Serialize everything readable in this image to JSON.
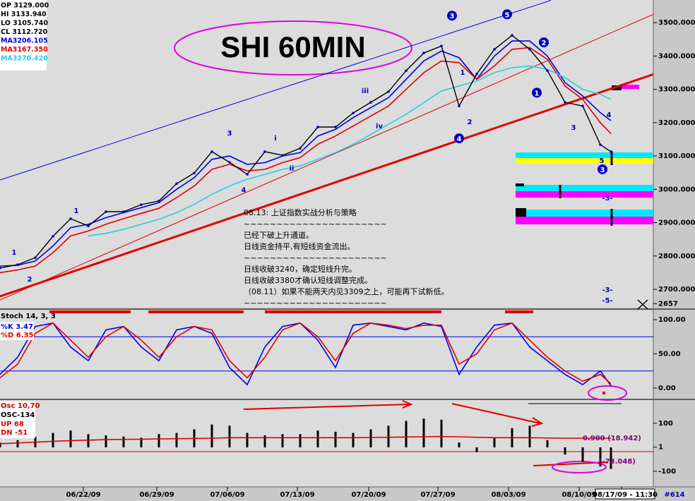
{
  "chart_data": [
    {
      "type": "line",
      "title": "SHI 60MIN",
      "info_text": [
        "OP 3129.000",
        "HI 3133.940",
        "LO 3105.740",
        "CL 3112.720"
      ],
      "x": [
        0,
        5,
        10,
        15,
        20,
        25,
        30,
        35,
        40,
        45,
        50,
        55,
        60,
        65,
        70,
        75,
        80,
        85,
        90,
        95,
        100,
        105,
        110,
        115,
        120,
        125,
        130,
        135,
        140,
        145,
        150,
        155,
        160,
        165,
        170,
        173
      ],
      "values": [
        2764,
        2774,
        2795,
        2859,
        2912,
        2890,
        2933,
        2933,
        2954,
        2965,
        3017,
        3049,
        3113,
        3081,
        3045,
        3113,
        3102,
        3123,
        3187,
        3187,
        3229,
        3261,
        3293,
        3356,
        3409,
        3430,
        3250,
        3346,
        3420,
        3462,
        3420,
        3356,
        3261,
        3250,
        3134,
        3113
      ],
      "color": "#000000",
      "series": [
        {
          "name": "MA3206.105",
          "color": "#0000e0",
          "values": [
            2770,
            2772,
            2785,
            2830,
            2885,
            2895,
            2915,
            2930,
            2945,
            2960,
            3000,
            3035,
            3090,
            3100,
            3075,
            3080,
            3100,
            3110,
            3160,
            3180,
            3215,
            3245,
            3275,
            3330,
            3385,
            3415,
            3395,
            3330,
            3400,
            3445,
            3445,
            3400,
            3320,
            3280,
            3230,
            3206
          ]
        },
        {
          "name": "MA3167.350",
          "color": "#e00000",
          "values": [
            2750,
            2758,
            2770,
            2810,
            2860,
            2875,
            2895,
            2912,
            2928,
            2943,
            2975,
            3010,
            3060,
            3075,
            3055,
            3060,
            3080,
            3095,
            3135,
            3160,
            3190,
            3220,
            3250,
            3300,
            3350,
            3385,
            3380,
            3330,
            3370,
            3420,
            3425,
            3390,
            3310,
            3270,
            3200,
            3167
          ]
        },
        {
          "name": "MA3270.420",
          "color": "#20d0e0",
          "values": [
            null,
            null,
            null,
            null,
            null,
            2860,
            2868,
            2880,
            2895,
            2910,
            2930,
            2955,
            2985,
            3010,
            3030,
            3045,
            3060,
            3070,
            3090,
            3110,
            3135,
            3165,
            3195,
            3225,
            3260,
            3295,
            3310,
            3325,
            3350,
            3365,
            3370,
            3360,
            3335,
            3300,
            3285,
            3270
          ]
        }
      ],
      "trendlines": [
        {
          "color": "#0000e0",
          "x": [
            0,
            156
          ],
          "values": [
            3028,
            3567
          ]
        },
        {
          "color": "#e00000",
          "x": [
            0,
            185
          ],
          "values": [
            2668,
            3525
          ]
        },
        {
          "color": "#e00000",
          "x": [
            0,
            185
          ],
          "values": [
            2679,
            3345
          ],
          "width": 3
        }
      ],
      "wave_labels": [
        {
          "text": "3",
          "x": 128,
          "y": 3521,
          "circled": true
        },
        {
          "text": "5",
          "x": 143.6,
          "y": 3525,
          "circled": true
        },
        {
          "text": "4",
          "x": 130,
          "y": 3153,
          "circled": true
        },
        {
          "text": "1",
          "x": 152,
          "y": 3290,
          "circled": true
        },
        {
          "text": "2",
          "x": 154,
          "y": 3441,
          "circled": true
        },
        {
          "text": "3",
          "x": 170.6,
          "y": 3060,
          "circled": true
        },
        {
          "text": "1",
          "x": 4,
          "y": 2812
        },
        {
          "text": "2",
          "x": 8.4,
          "y": 2732
        },
        {
          "text": "1",
          "x": 21.6,
          "y": 2937
        },
        {
          "text": "3",
          "x": 65,
          "y": 3170
        },
        {
          "text": "4",
          "x": 69,
          "y": 3000
        },
        {
          "text": "i",
          "x": 78,
          "y": 3155
        },
        {
          "text": "ii",
          "x": 82.6,
          "y": 3064
        },
        {
          "text": "iii",
          "x": 103.4,
          "y": 3297
        },
        {
          "text": "iv",
          "x": 107.4,
          "y": 3191
        },
        {
          "text": "1",
          "x": 131,
          "y": 3352
        },
        {
          "text": "2",
          "x": 133,
          "y": 3204
        },
        {
          "text": "3",
          "x": 162.4,
          "y": 3187
        },
        {
          "text": "4",
          "x": 172.4,
          "y": 3225
        },
        {
          "text": "5",
          "x": 170.4,
          "y": 3087
        },
        {
          "text": "-3-",
          "x": 172,
          "y": 2975
        },
        {
          "text": "-3-",
          "x": 172,
          "y": 2700
        },
        {
          "text": "-5-",
          "x": 172,
          "y": 2668
        }
      ],
      "notes": [
        "08.13: 上证指数实战分析与策略",
        "~~~~~~~~~~~~~~~~~~~~~~",
        "已经下破上升通道。",
        "日线资金持平,有短线资金流出。",
        "~~~~~~~~~~~~~~~~~~~~~~",
        "日线收破3240，确定短线升完。",
        "日线收破3380才确认短线调整完成。",
        "（08.11）如果不能两天内见3309之上，可能再下试新低。",
        "~~~~~~~~~~~~~~~~~~~~~~"
      ],
      "xlim": [
        0,
        185
      ],
      "ylim": [
        2645,
        3568
      ],
      "yticks": [
        {
          "value": 3500,
          "label": "3500.000"
        },
        {
          "value": 3400,
          "label": "3400.000"
        },
        {
          "value": 3300,
          "label": "3300.000"
        },
        {
          "value": 3200,
          "label": "3200.000"
        },
        {
          "value": 3100,
          "label": "3100.000"
        },
        {
          "value": 3000,
          "label": "3000.000"
        },
        {
          "value": 2900,
          "label": "2900.000"
        },
        {
          "value": 2800,
          "label": "2800.000"
        },
        {
          "value": 2700,
          "label": "2700.000"
        },
        2657
      ]
    },
    {
      "type": "line",
      "title": "Stoch 14, 3, 3",
      "x": [
        0,
        5,
        10,
        15,
        20,
        25,
        30,
        35,
        40,
        45,
        50,
        55,
        60,
        65,
        70,
        75,
        80,
        85,
        90,
        95,
        100,
        105,
        110,
        115,
        120,
        125,
        130,
        135,
        140,
        145,
        150,
        155,
        160,
        165,
        170,
        173
      ],
      "series": [
        {
          "name": "%K  3.47",
          "color": "#0000e0",
          "values": [
            20,
            45,
            90,
            95,
            60,
            40,
            85,
            90,
            60,
            40,
            85,
            90,
            80,
            30,
            5,
            60,
            90,
            95,
            70,
            30,
            92,
            95,
            90,
            85,
            95,
            90,
            20,
            60,
            92,
            95,
            60,
            40,
            20,
            5,
            25,
            3.47
          ]
        },
        {
          "name": "%D  6.35",
          "color": "#e00000",
          "values": [
            15,
            35,
            80,
            95,
            70,
            45,
            75,
            90,
            70,
            45,
            75,
            90,
            85,
            40,
            15,
            45,
            85,
            95,
            75,
            40,
            80,
            95,
            92,
            87,
            92,
            92,
            35,
            50,
            85,
            95,
            70,
            45,
            25,
            10,
            20,
            6.35
          ]
        }
      ],
      "hlines": [
        75,
        25
      ],
      "hline_color": "#0000e0",
      "xlim": [
        0,
        185
      ],
      "ylim": [
        -15.5,
        113.4
      ],
      "yticks": [
        {
          "value": 100,
          "label": "100.00"
        },
        {
          "value": 50,
          "label": "50.00"
        },
        {
          "value": 0,
          "label": "0.00"
        }
      ]
    },
    {
      "type": "bar",
      "title": "Osc 10,70",
      "info_text": [
        "UP  68",
        "DN  -51"
      ],
      "x": [
        0,
        5,
        10,
        15,
        20,
        25,
        30,
        35,
        40,
        45,
        50,
        55,
        60,
        65,
        70,
        75,
        80,
        85,
        90,
        95,
        100,
        105,
        110,
        115,
        120,
        125,
        130,
        135,
        140,
        145,
        150,
        155,
        160,
        165,
        170,
        173
      ],
      "values": [
        20,
        30,
        45,
        60,
        70,
        55,
        50,
        45,
        40,
        55,
        60,
        75,
        95,
        90,
        60,
        50,
        55,
        55,
        70,
        65,
        60,
        75,
        90,
        110,
        120,
        115,
        20,
        -20,
        40,
        80,
        90,
        30,
        -30,
        -60,
        -80,
        -90
      ],
      "color": "#000000",
      "series": [
        {
          "name": "OSC-134",
          "color": "#e00000",
          "values": [
            15,
            18,
            22,
            25,
            28,
            30,
            32,
            33,
            34,
            35,
            36,
            37,
            38,
            40,
            40,
            40,
            40,
            40,
            40,
            40,
            40,
            41,
            42,
            43,
            44,
            45,
            44,
            42,
            40,
            40,
            40,
            39,
            38,
            38,
            38,
            38
          ]
        }
      ],
      "hlines": [
        -18
      ],
      "hline_color": "#e00000",
      "annotations": [
        {
          "text": "0.900 (18.942)",
          "x": 165,
          "y": 38
        },
        {
          "text": "(-73.048)",
          "x": 169.6,
          "y": -59
        }
      ],
      "xlim": [
        0,
        185
      ],
      "ylim": [
        -165,
        197
      ],
      "yticks": [
        100,
        1,
        -100
      ],
      "xticks": [
        {
          "value": 23.6,
          "label": "06/22/09"
        },
        {
          "value": 44.4,
          "label": "06/29/09"
        },
        {
          "value": 64.4,
          "label": "07/06/09"
        },
        {
          "value": 84.2,
          "label": "07/13/09"
        },
        {
          "value": 104.4,
          "label": "07/20/09"
        },
        {
          "value": 124,
          "label": "07/27/09"
        },
        {
          "value": 144,
          "label": "08/03/09"
        },
        {
          "value": 164,
          "label": "08/10/09"
        },
        {
          "value": 176,
          "label": "08/17/09 - 11:30"
        }
      ],
      "bar_label": "#614"
    }
  ]
}
